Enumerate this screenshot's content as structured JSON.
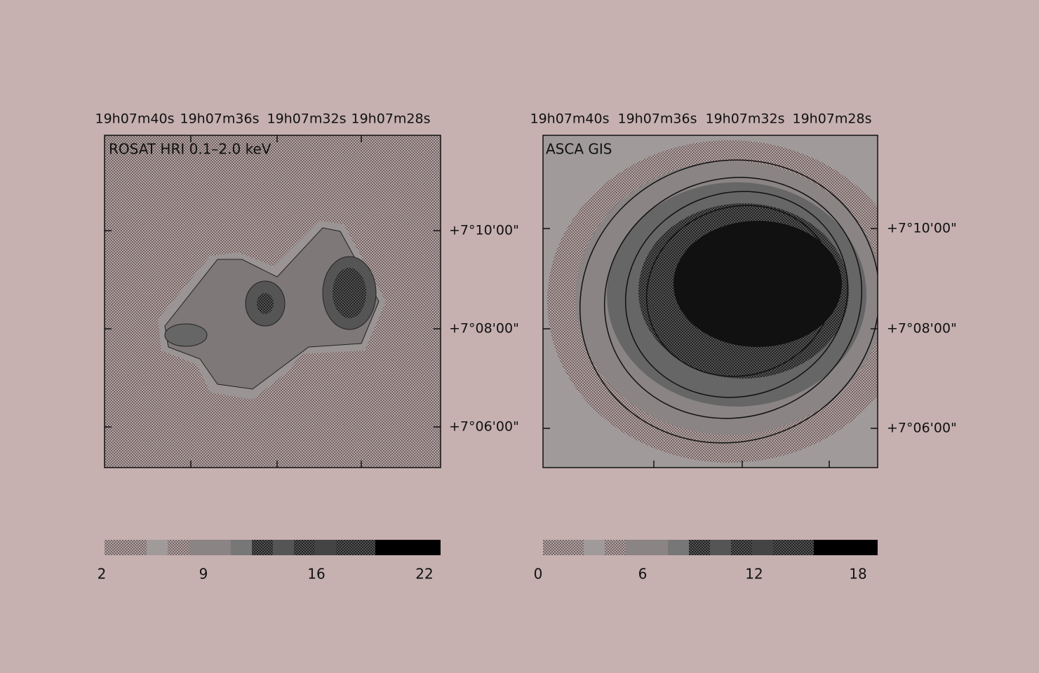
{
  "panels": [
    {
      "title": "ROSAT HRI 0.1–2.0 keV",
      "ra_labels": [
        "19h07m40s",
        "19h07m36s",
        "19h07m32s",
        "19h07m28s"
      ],
      "dec_labels": [
        "+7°10'00\"",
        "+7°08'00\"",
        "+7°06'00\""
      ],
      "colorbar_labels": [
        2,
        9,
        16,
        22
      ]
    },
    {
      "title": "ASCA GIS",
      "ra_labels": [
        "19h07m40s",
        "19h07m36s",
        "19h07m32s",
        "19h07m28s"
      ],
      "dec_labels": [
        "+7°10'00\"",
        "+7°08'00\"",
        "+7°06'00\""
      ],
      "colorbar_labels": [
        0,
        6,
        12,
        18
      ]
    }
  ]
}
